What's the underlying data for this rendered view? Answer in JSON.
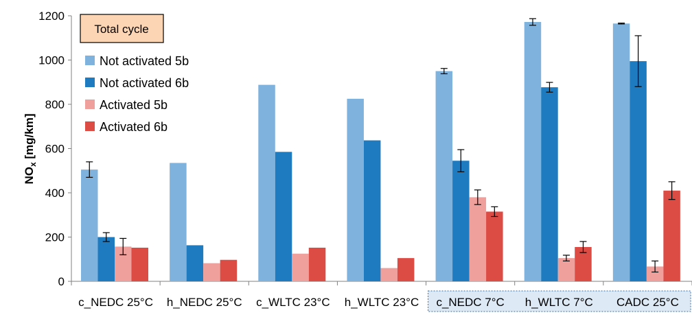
{
  "chart_data": {
    "type": "bar",
    "title": "",
    "xlabel": "",
    "ylabel_main": "NO",
    "ylabel_sub": "x",
    "ylabel_unit": " [mg/km]",
    "ylim": [
      0,
      1200
    ],
    "yticks": [
      0,
      200,
      400,
      600,
      800,
      1000,
      1200
    ],
    "grid": false,
    "legend_position": "top-left",
    "annotation": "Total cycle",
    "categories": [
      "c_NEDC 25°C",
      "h_NEDC 25°C",
      "c_WLTC 23°C",
      "h_WLTC 23°C",
      "c_NEDC 7°C",
      "h_WLTC 7°C",
      "CADC 25°C"
    ],
    "highlighted_categories": [
      "c_NEDC 7°C",
      "h_WLTC 7°C",
      "CADC 25°C"
    ],
    "series": [
      {
        "name": "Not activated 5b",
        "color": "#7fb2dc",
        "values": [
          505,
          535,
          888,
          825,
          950,
          1172,
          1165
        ],
        "errors": [
          35,
          null,
          null,
          null,
          12,
          15,
          2
        ]
      },
      {
        "name": "Not activated 6b",
        "color": "#1f7bbf",
        "values": [
          200,
          163,
          585,
          637,
          545,
          877,
          995
        ],
        "errors": [
          20,
          null,
          null,
          null,
          50,
          22,
          115
        ]
      },
      {
        "name": "Activated 5b",
        "color": "#f0a09c",
        "values": [
          157,
          82,
          125,
          60,
          380,
          105,
          67
        ],
        "errors": [
          37,
          null,
          null,
          null,
          33,
          13,
          25
        ]
      },
      {
        "name": "Activated 6b",
        "color": "#dd4b45",
        "values": [
          152,
          97,
          152,
          105,
          315,
          155,
          410
        ],
        "errors": [
          null,
          null,
          null,
          null,
          22,
          25,
          40
        ]
      }
    ]
  }
}
